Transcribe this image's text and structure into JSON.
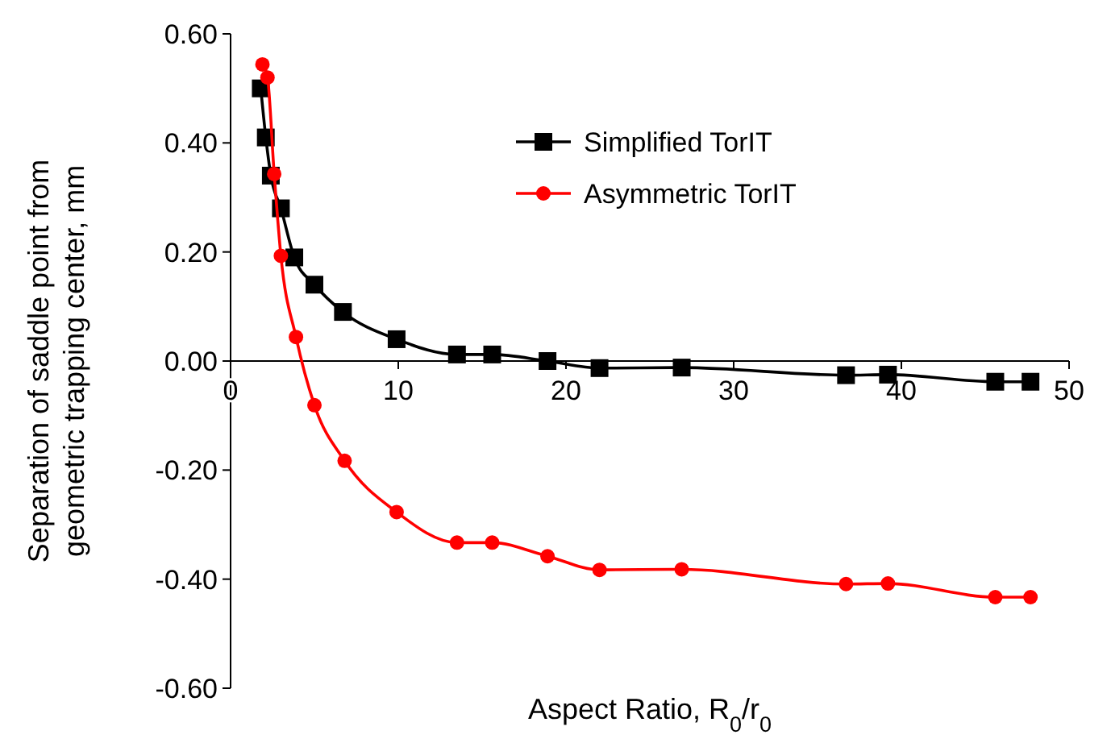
{
  "chart_data": {
    "type": "line",
    "xlabel": "Aspect Ratio, R$_{0}$/r$_{0}$",
    "ylabel": "Separation of saddle point from geometric trapping center, mm",
    "xlim": [
      0,
      50
    ],
    "xticks": [
      0,
      10,
      20,
      30,
      40,
      50
    ],
    "ylim": [
      -0.6,
      0.6
    ],
    "yticks": [
      {
        "value": -0.6,
        "label": "-0.60"
      },
      {
        "value": -0.4,
        "label": "-0.40"
      },
      {
        "value": -0.2,
        "label": "-0.20"
      },
      {
        "value": 0,
        "label": "0.00"
      },
      {
        "value": 0.2,
        "label": "0.20"
      },
      {
        "value": 0.4,
        "label": "0.40"
      },
      {
        "value": 0.6,
        "label": "0.60"
      }
    ],
    "grid": false,
    "legend": "top right",
    "series": [
      {
        "name": "Simplified TorIT",
        "color": "#000000",
        "marker": "square",
        "x": [
          1.8,
          2.1,
          2.4,
          3.0,
          3.8,
          5.0,
          6.7,
          9.9,
          13.5,
          15.6,
          18.9,
          22.0,
          26.9,
          36.7,
          39.2,
          45.6,
          47.7
        ],
        "values": [
          0.5,
          0.41,
          0.34,
          0.28,
          0.19,
          0.14,
          0.09,
          0.04,
          0.012,
          0.012,
          0.0,
          -0.013,
          -0.012,
          -0.026,
          -0.025,
          -0.038,
          -0.038
        ]
      },
      {
        "name": "Asymmetric TorIT",
        "color": "#ff0000",
        "marker": "circle",
        "x": [
          1.9,
          2.2,
          2.6,
          3.0,
          3.9,
          5.0,
          6.8,
          9.9,
          13.5,
          15.6,
          18.9,
          22.0,
          26.9,
          36.7,
          39.2,
          45.6,
          47.7
        ],
        "values": [
          0.544,
          0.52,
          0.343,
          0.193,
          0.044,
          -0.081,
          -0.183,
          -0.277,
          -0.333,
          -0.333,
          -0.358,
          -0.383,
          -0.382,
          -0.409,
          -0.408,
          -0.433,
          -0.433
        ]
      }
    ]
  }
}
